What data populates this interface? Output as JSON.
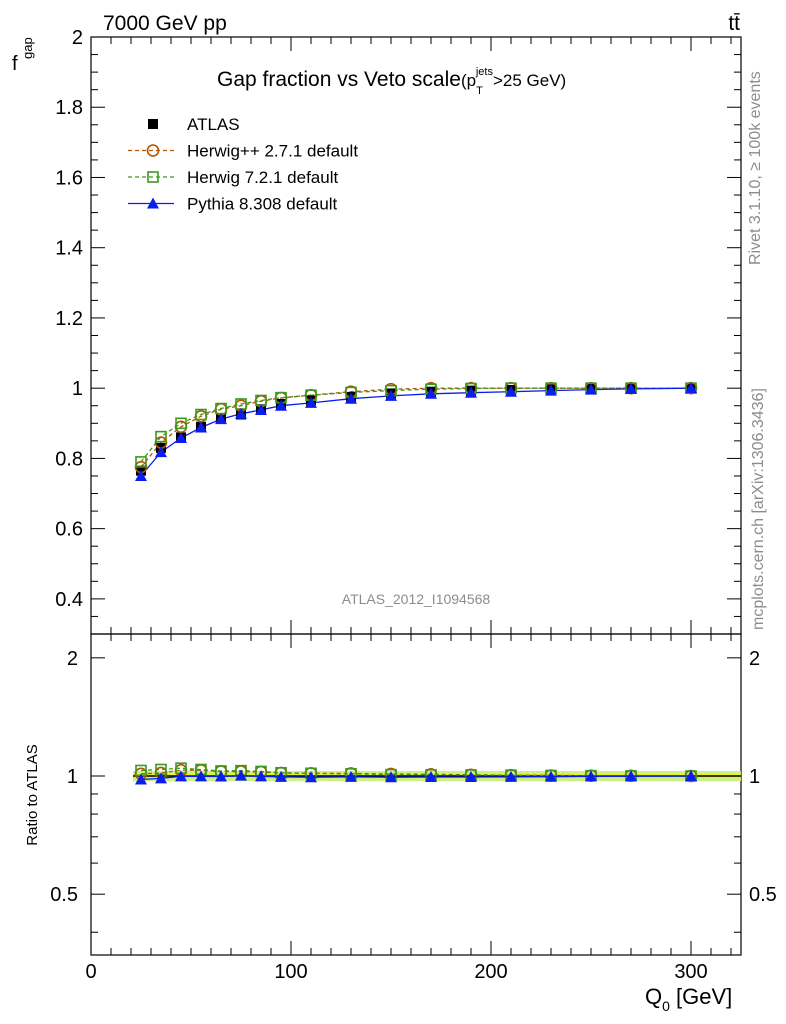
{
  "header": {
    "energy_label": "7000 GeV pp",
    "process_label": "tt̄",
    "title_main": "Gap fraction vs Veto scale",
    "title_paren_open": "(p",
    "title_sup": "jets",
    "title_sub": "T",
    "title_tail": ">25 GeV)"
  },
  "side_labels": {
    "rivet": "Rivet 3.1.10, ≥ 100k events",
    "mcplots": "mcplots.cern.ch [arXiv:1306.3436]"
  },
  "watermark": "ATLAS_2012_I1094568",
  "axes": {
    "top_ylabel_main": "f",
    "top_ylabel_sub": "gap",
    "bottom_ylabel": "Ratio to ATLAS",
    "xlabel_main": "Q",
    "xlabel_sub": "0",
    "xlabel_unit": " [GeV]"
  },
  "colors": {
    "atlas": "#000000",
    "herwigpp": "#b25400",
    "herwig7": "#3a9a1e",
    "pythia": "#0a1ef0",
    "band_light": "#c8f07a",
    "band_dark": "#f0f000"
  },
  "chart_data": [
    {
      "type": "scatter",
      "panel": "main",
      "title": "Gap fraction vs Veto scale (p_T^jets > 25 GeV)",
      "xlabel": "Q_0 [GeV]",
      "ylabel": "f_gap",
      "xlim": [
        0,
        325
      ],
      "ylim": [
        0.3,
        2.0
      ],
      "xticks": [
        0,
        100,
        200,
        300
      ],
      "yticks": [
        0.4,
        0.6,
        0.8,
        1,
        1.2,
        1.4,
        1.6,
        1.8,
        2
      ],
      "ytick_labels": [
        "0.4",
        "0.6",
        "0.8",
        "1",
        "1.2",
        "1.4",
        "1.6",
        "1.8",
        "2"
      ],
      "legend_position": "top-left",
      "x": [
        25,
        35,
        45,
        55,
        65,
        75,
        85,
        95,
        110,
        130,
        150,
        170,
        190,
        210,
        230,
        250,
        270,
        300
      ],
      "series": [
        {
          "name": "ATLAS",
          "marker": "square-filled",
          "line": "none",
          "values": [
            0.765,
            0.83,
            0.86,
            0.89,
            0.915,
            0.925,
            0.94,
            0.955,
            0.965,
            0.975,
            0.985,
            0.99,
            0.993,
            0.995,
            0.997,
            0.998,
            0.999,
            1.0
          ]
        },
        {
          "name": "Herwig++ 2.7.1 default",
          "marker": "circle-open",
          "line": "dashed",
          "values": [
            0.775,
            0.845,
            0.89,
            0.92,
            0.94,
            0.95,
            0.963,
            0.972,
            0.98,
            0.99,
            0.997,
            1.0,
            1.0,
            1.0,
            1.0,
            1.0,
            1.0,
            1.0
          ]
        },
        {
          "name": "Herwig 7.2.1 default",
          "marker": "square-open",
          "line": "dashed",
          "values": [
            0.79,
            0.862,
            0.9,
            0.925,
            0.942,
            0.955,
            0.965,
            0.973,
            0.98,
            0.988,
            0.993,
            0.997,
            0.999,
            1.0,
            1.0,
            1.0,
            1.0,
            1.0
          ]
        },
        {
          "name": "Pythia 8.308 default",
          "marker": "triangle-filled",
          "line": "solid",
          "values": [
            0.75,
            0.818,
            0.858,
            0.888,
            0.912,
            0.927,
            0.938,
            0.95,
            0.958,
            0.97,
            0.978,
            0.984,
            0.987,
            0.99,
            0.993,
            0.996,
            0.998,
            1.0
          ]
        }
      ]
    },
    {
      "type": "scatter",
      "panel": "ratio",
      "xlabel": "Q_0 [GeV]",
      "ylabel": "Ratio to ATLAS",
      "xlim": [
        0,
        325
      ],
      "ylim": [
        0.35,
        2.3
      ],
      "scale": "log",
      "yticks": [
        0.5,
        1,
        2
      ],
      "ytick_labels": [
        "0.5",
        "1",
        "2"
      ],
      "x": [
        25,
        35,
        45,
        55,
        65,
        75,
        85,
        95,
        110,
        130,
        150,
        170,
        190,
        210,
        230,
        250,
        270,
        300
      ],
      "series": [
        {
          "name": "Herwig++ 2.7.1 default",
          "values": [
            1.013,
            1.018,
            1.035,
            1.034,
            1.027,
            1.027,
            1.024,
            1.018,
            1.016,
            1.015,
            1.012,
            1.01,
            1.007,
            1.005,
            1.003,
            1.002,
            1.001,
            1.0
          ]
        },
        {
          "name": "Herwig 7.2.1 default",
          "values": [
            1.033,
            1.039,
            1.047,
            1.039,
            1.03,
            1.032,
            1.027,
            1.019,
            1.016,
            1.013,
            1.008,
            1.007,
            1.006,
            1.005,
            1.003,
            1.002,
            1.001,
            1.0
          ]
        },
        {
          "name": "Pythia 8.308 default",
          "values": [
            0.98,
            0.986,
            0.998,
            0.998,
            0.997,
            1.002,
            0.998,
            0.995,
            0.993,
            0.995,
            0.993,
            0.994,
            0.994,
            0.995,
            0.996,
            0.998,
            0.999,
            1.0
          ]
        }
      ]
    }
  ]
}
